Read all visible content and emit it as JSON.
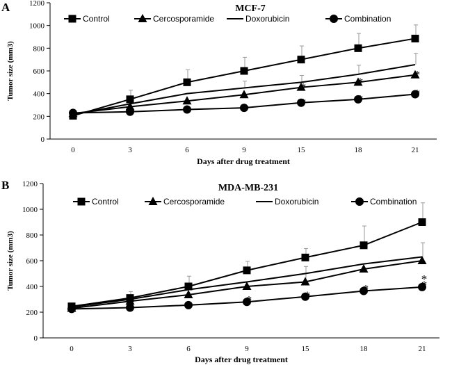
{
  "chart_data": [
    {
      "type": "line",
      "panel_label": "A",
      "title": "MCF-7",
      "xlabel": "Days after drug treatment",
      "ylabel": "Tumor size (mm3)",
      "categories": [
        "0",
        "3",
        "6",
        "9",
        "15",
        "18",
        "21"
      ],
      "ylim": [
        0,
        1200
      ],
      "yticks": [
        "0",
        "200",
        "400",
        "600",
        "800",
        "1000",
        "1200"
      ],
      "legend_position": "top",
      "series": [
        {
          "name": "Control",
          "marker": "square",
          "values": [
            205,
            350,
            500,
            600,
            700,
            800,
            885
          ],
          "errors": [
            0,
            80,
            110,
            120,
            120,
            130,
            120
          ]
        },
        {
          "name": "Cercosporamide",
          "marker": "triangle",
          "values": [
            225,
            285,
            335,
            390,
            455,
            500,
            565
          ],
          "errors": [
            0,
            0,
            0,
            0,
            0,
            0,
            0
          ]
        },
        {
          "name": "Doxorubicin",
          "marker": "none",
          "values": [
            215,
            310,
            400,
            450,
            500,
            570,
            655
          ],
          "errors": [
            0,
            0,
            0,
            60,
            60,
            80,
            100
          ]
        },
        {
          "name": "Combination",
          "marker": "circle",
          "values": [
            230,
            240,
            260,
            275,
            320,
            350,
            395
          ],
          "errors": [
            0,
            0,
            0,
            0,
            0,
            0,
            0
          ]
        }
      ],
      "annotations": [
        {
          "text": "*",
          "category": "9",
          "value": 290
        },
        {
          "text": "*",
          "category": "15",
          "value": 350
        },
        {
          "text": "*",
          "category": "18",
          "value": 380
        },
        {
          "text": "*",
          "category": "21",
          "value": 430
        },
        {
          "text": "*",
          "category": "15",
          "value": 485
        },
        {
          "text": "*",
          "category": "18",
          "value": 530
        },
        {
          "text": "*",
          "category": "21",
          "value": 595
        }
      ]
    },
    {
      "type": "line",
      "panel_label": "B",
      "title": "MDA-MB-231",
      "xlabel": "Days after drug treatment",
      "ylabel": "Tumor size (mm3)",
      "categories": [
        "0",
        "3",
        "6",
        "9",
        "15",
        "18",
        "21"
      ],
      "ylim": [
        0,
        1200
      ],
      "yticks": [
        "0",
        "200",
        "400",
        "600",
        "800",
        "1000",
        "1200"
      ],
      "legend_position": "top",
      "series": [
        {
          "name": "Control",
          "marker": "square",
          "values": [
            245,
            310,
            400,
            525,
            625,
            720,
            900
          ],
          "errors": [
            0,
            50,
            80,
            70,
            70,
            150,
            150
          ]
        },
        {
          "name": "Cercosporamide",
          "marker": "triangle",
          "values": [
            230,
            285,
            335,
            400,
            435,
            535,
            600
          ],
          "errors": [
            0,
            0,
            0,
            0,
            120,
            0,
            0
          ]
        },
        {
          "name": "Doxorubicin",
          "marker": "none",
          "values": [
            240,
            300,
            375,
            435,
            500,
            575,
            630
          ],
          "errors": [
            0,
            0,
            0,
            0,
            0,
            0,
            110
          ]
        },
        {
          "name": "Combination",
          "marker": "circle",
          "values": [
            225,
            235,
            255,
            280,
            320,
            365,
            395
          ],
          "errors": [
            0,
            0,
            0,
            0,
            0,
            0,
            0
          ]
        }
      ],
      "annotations": [
        {
          "text": "*",
          "category": "9",
          "value": 320
        },
        {
          "text": "*",
          "category": "15",
          "value": 355
        },
        {
          "text": "*",
          "category": "18",
          "value": 405
        },
        {
          "text": "*",
          "category": "21",
          "value": 435
        },
        {
          "text": "*",
          "category": "21",
          "value": 480
        }
      ]
    }
  ]
}
